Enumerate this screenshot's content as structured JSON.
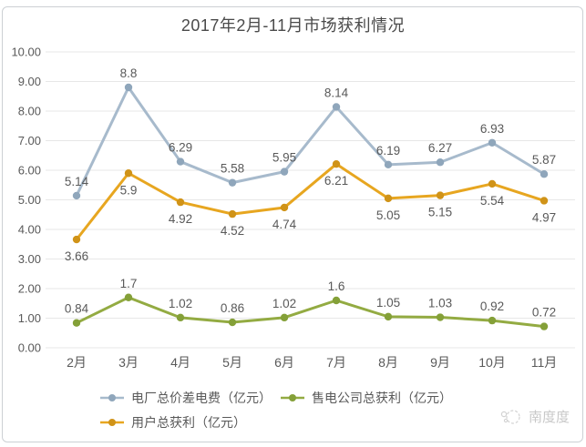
{
  "title": "2017年2月-11月市场获利情况",
  "chart_data": {
    "type": "line",
    "title": "2017年2月-11月市场获利情况",
    "categories": [
      "2月",
      "3月",
      "4月",
      "5月",
      "6月",
      "7月",
      "8月",
      "9月",
      "10月",
      "11月"
    ],
    "series": [
      {
        "name": "电厂总价差电费（亿元）",
        "values": [
          5.14,
          8.8,
          6.29,
          5.58,
          5.95,
          8.14,
          6.19,
          6.27,
          6.93,
          5.87
        ],
        "color": "#a7bacc",
        "marker_color": "#8fa6bb",
        "label_position": "above"
      },
      {
        "name": "售电公司总获利（亿元）",
        "values": [
          0.84,
          1.7,
          1.02,
          0.86,
          1.02,
          1.6,
          1.05,
          1.03,
          0.92,
          0.72
        ],
        "color": "#93ab42",
        "marker_color": "#84a038",
        "label_position": "above"
      },
      {
        "name": "用户总获利（亿元）",
        "values": [
          3.66,
          5.9,
          4.92,
          4.52,
          4.74,
          6.21,
          5.05,
          5.15,
          5.54,
          4.97
        ],
        "color": "#e7a620",
        "marker_color": "#d09318",
        "label_position": "below"
      }
    ],
    "xlabel": "",
    "ylabel": "",
    "ylim": [
      0,
      10
    ],
    "ytick_step": 1,
    "ytick_labels": [
      "0.00",
      "1.00",
      "2.00",
      "3.00",
      "4.00",
      "5.00",
      "6.00",
      "7.00",
      "8.00",
      "9.00",
      "10.00"
    ],
    "grid": "horizontal",
    "legend_position": "bottom",
    "legend_rows": [
      [
        0,
        1
      ],
      [
        2
      ]
    ]
  },
  "watermark": {
    "text": "南度度"
  },
  "colors": {
    "title": "#4a4a4a",
    "text": "#595959",
    "grid": "#e7e7e7",
    "border": "#ccd0d4",
    "watermark": "#c8c8c8"
  }
}
